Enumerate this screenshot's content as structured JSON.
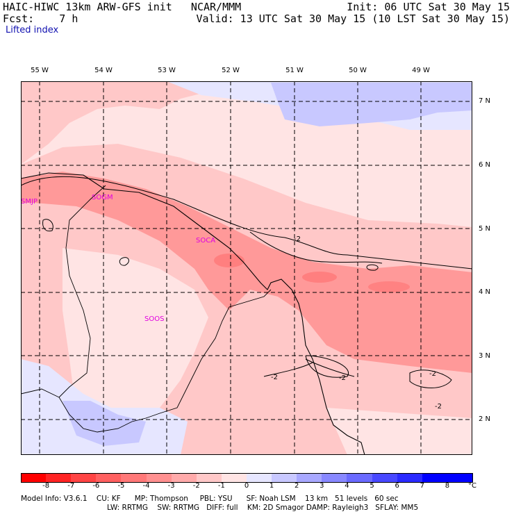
{
  "header": {
    "line1_left": "HAIC-HIWC 13km ARW-GFS init   NCAR/MMM",
    "line2_left": "Fcst:    7 h",
    "line1_right": "Init: 06 UTC Sat 30 May 15",
    "line2_right": "Valid: 13 UTC Sat 30 May 15 (10 LST Sat 30 May 15)",
    "field": "Lifted index"
  },
  "axes": {
    "lon_labels": [
      "55 W",
      "54 W",
      "53 W",
      "52 W",
      "51 W",
      "50 W",
      "49 W"
    ],
    "lat_labels": [
      "7 N",
      "6 N",
      "5 N",
      "4 N",
      "3 N",
      "2 N"
    ]
  },
  "stations": [
    "SMJP",
    "SOGM",
    "SOCA",
    "SOOS"
  ],
  "contour_labels": [
    "-2",
    "-2",
    "-2",
    "-2",
    "-2"
  ],
  "colorbar": {
    "ticks": [
      "-8",
      "-7",
      "-6",
      "-5",
      "-4",
      "-3",
      "-2",
      "-1",
      "0",
      "1",
      "2",
      "3",
      "4",
      "5",
      "6",
      "7",
      "8"
    ],
    "unit": "°C",
    "colors": [
      "#ff0000",
      "#ff2424",
      "#ff4444",
      "#ff6060",
      "#ff7878",
      "#ff9090",
      "#ffaaaa",
      "#ffc8c8",
      "#ffe4e4",
      "#e6e6ff",
      "#c8c8ff",
      "#a8a8ff",
      "#8888ff",
      "#6a6aff",
      "#4848ff",
      "#2a2aff",
      "#0000ff"
    ]
  },
  "footer": {
    "line1": "Model Info: V3.6.1    CU: KF      MP: Thompson     PBL: YSU      SF: Noah LSM    13 km   51 levels   60 sec",
    "line2": "LW: RRTMG    SW: RRTMG   DIFF: full    KM: 2D Smagor DAMP: Rayleigh3   SFLAY: MM5"
  }
}
